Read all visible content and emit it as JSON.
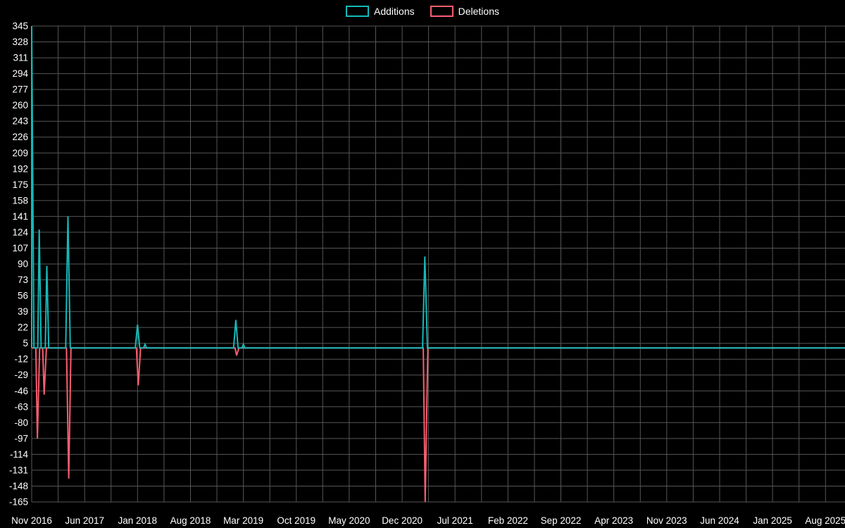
{
  "page": {
    "background": "#000000",
    "text_color": "#ffffff"
  },
  "legend": {
    "items": [
      {
        "label": "Additions",
        "color": "#17b8b8"
      },
      {
        "label": "Deletions",
        "color": "#f95d70"
      }
    ]
  },
  "chart_data": {
    "type": "line",
    "x_unit": "month",
    "x_start": "Nov 2016",
    "x_end": "Aug 2025",
    "months_total": 106,
    "ylim": [
      -165,
      345
    ],
    "y_ticks": [
      345,
      328,
      311,
      294,
      277,
      260,
      243,
      226,
      209,
      192,
      175,
      158,
      141,
      124,
      107,
      90,
      73,
      56,
      39,
      22,
      5,
      -12,
      -29,
      -46,
      -63,
      -80,
      -97,
      -114,
      -131,
      -148,
      -165
    ],
    "x_tick_labels": [
      "Nov 2016",
      "Jun 2017",
      "Jan 2018",
      "Aug 2018",
      "Mar 2019",
      "Oct 2019",
      "May 2020",
      "Dec 2020",
      "Jul 2021",
      "Feb 2022",
      "Sep 2022",
      "Apr 2023",
      "Nov 2023",
      "Jun 2024",
      "Jan 2025",
      "Aug 2025"
    ],
    "x_tick_month_indices": [
      0,
      7,
      14,
      21,
      28,
      35,
      42,
      49,
      56,
      63,
      70,
      77,
      84,
      91,
      98,
      105
    ],
    "grid": {
      "color": "#565656",
      "vertical_step_months": 3.5
    },
    "baseline_value": 0,
    "spikes": [
      {
        "date": "Nov 2016",
        "additions": 345,
        "deletions": -97
      },
      {
        "date": "Dec 2016",
        "additions": 127,
        "deletions": -50
      },
      {
        "date": "Jan 2017",
        "additions": 88,
        "deletions": 0
      },
      {
        "date": "Apr 2017",
        "additions": 141,
        "deletions": -140
      },
      {
        "date": "Jan 2018",
        "additions": 25,
        "deletions": -40
      },
      {
        "date": "Feb 2018",
        "additions": 4,
        "deletions": 0
      },
      {
        "date": "Feb 2019",
        "additions": 30,
        "deletions": -8
      },
      {
        "date": "Mar 2021",
        "additions": 98,
        "deletions": -165
      }
    ],
    "series": [
      {
        "name": "Additions",
        "color": "#17b8b8",
        "baseline": 0,
        "path": [
          {
            "m": 0,
            "v": 0
          },
          {
            "m": 0,
            "v": 345
          },
          {
            "m": 0.3,
            "v": 0
          },
          {
            "m": 0.8,
            "v": 0
          },
          {
            "m": 1,
            "v": 127
          },
          {
            "m": 1.25,
            "v": 0
          },
          {
            "m": 1.8,
            "v": 0
          },
          {
            "m": 2,
            "v": 88
          },
          {
            "m": 2.25,
            "v": 0
          },
          {
            "m": 4.5,
            "v": 0
          },
          {
            "m": 4.8,
            "v": 141
          },
          {
            "m": 5.1,
            "v": 0
          },
          {
            "m": 13.7,
            "v": 0
          },
          {
            "m": 14,
            "v": 25
          },
          {
            "m": 14.3,
            "v": 0
          },
          {
            "m": 14.8,
            "v": 0
          },
          {
            "m": 15,
            "v": 4
          },
          {
            "m": 15.2,
            "v": 0
          },
          {
            "m": 26.7,
            "v": 0
          },
          {
            "m": 27,
            "v": 30
          },
          {
            "m": 27.3,
            "v": 0
          },
          {
            "m": 27.8,
            "v": 0
          },
          {
            "m": 28,
            "v": 4
          },
          {
            "m": 28.2,
            "v": 0
          },
          {
            "m": 51.7,
            "v": 0
          },
          {
            "m": 52,
            "v": 98
          },
          {
            "m": 52.35,
            "v": 0
          },
          {
            "m": 105,
            "v": 0
          }
        ]
      },
      {
        "name": "Deletions",
        "color": "#f95d70",
        "baseline": 0,
        "path": [
          {
            "m": 0,
            "v": 0
          },
          {
            "m": 0.55,
            "v": 0
          },
          {
            "m": 0.75,
            "v": -97
          },
          {
            "m": 1.05,
            "v": 0
          },
          {
            "m": 1.45,
            "v": 0
          },
          {
            "m": 1.65,
            "v": -50
          },
          {
            "m": 1.95,
            "v": 0
          },
          {
            "m": 4.6,
            "v": 0
          },
          {
            "m": 4.9,
            "v": -140
          },
          {
            "m": 5.2,
            "v": 0
          },
          {
            "m": 13.85,
            "v": 0
          },
          {
            "m": 14.1,
            "v": -40
          },
          {
            "m": 14.4,
            "v": 0
          },
          {
            "m": 26.9,
            "v": 0
          },
          {
            "m": 27.1,
            "v": -8
          },
          {
            "m": 27.4,
            "v": 0
          },
          {
            "m": 51.8,
            "v": 0
          },
          {
            "m": 52.05,
            "v": -165
          },
          {
            "m": 52.4,
            "v": 0
          },
          {
            "m": 105,
            "v": 0
          }
        ]
      }
    ]
  }
}
